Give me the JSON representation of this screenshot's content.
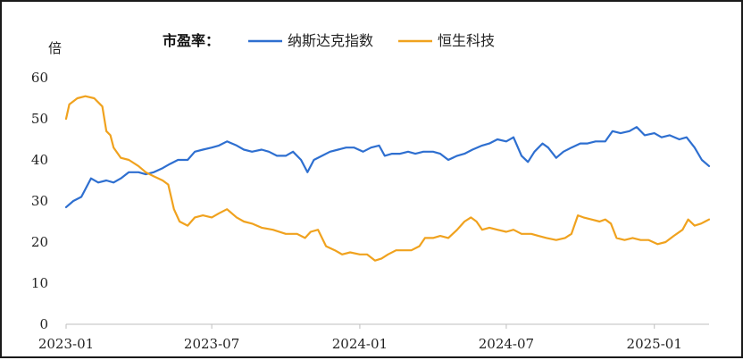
{
  "chart_data": {
    "type": "line",
    "title": "",
    "legend_title": "市盈率：",
    "unit_label": "倍",
    "xlabel": "",
    "ylabel": "",
    "ylim": [
      0,
      60
    ],
    "yticks": [
      0,
      10,
      20,
      30,
      40,
      50,
      60
    ],
    "xlim": [
      "2023-01",
      "2025-03-10"
    ],
    "xticks": [
      "2023-01",
      "2023-07",
      "2024-01",
      "2024-07",
      "2025-01"
    ],
    "legend_position": "top",
    "grid": false,
    "series": [
      {
        "name": "纳斯达克指数",
        "color": "#2E6FD0",
        "points": [
          [
            "2023-01-01",
            28.5
          ],
          [
            "2023-01-10",
            30
          ],
          [
            "2023-01-20",
            31
          ],
          [
            "2023-02-01",
            35.5
          ],
          [
            "2023-02-10",
            34.5
          ],
          [
            "2023-02-20",
            35
          ],
          [
            "2023-03-01",
            34.5
          ],
          [
            "2023-03-10",
            35.5
          ],
          [
            "2023-03-20",
            37
          ],
          [
            "2023-04-01",
            37
          ],
          [
            "2023-04-10",
            36.5
          ],
          [
            "2023-04-20",
            37
          ],
          [
            "2023-05-01",
            38
          ],
          [
            "2023-05-10",
            39
          ],
          [
            "2023-05-20",
            40
          ],
          [
            "2023-06-01",
            40
          ],
          [
            "2023-06-10",
            42
          ],
          [
            "2023-06-20",
            42.5
          ],
          [
            "2023-07-01",
            43
          ],
          [
            "2023-07-10",
            43.5
          ],
          [
            "2023-07-20",
            44.5
          ],
          [
            "2023-08-01",
            43.5
          ],
          [
            "2023-08-10",
            42.5
          ],
          [
            "2023-08-20",
            42
          ],
          [
            "2023-09-01",
            42.5
          ],
          [
            "2023-09-10",
            42
          ],
          [
            "2023-09-20",
            41
          ],
          [
            "2023-10-01",
            41
          ],
          [
            "2023-10-10",
            42
          ],
          [
            "2023-10-20",
            40
          ],
          [
            "2023-10-28",
            37
          ],
          [
            "2023-11-05",
            40
          ],
          [
            "2023-11-15",
            41
          ],
          [
            "2023-11-25",
            42
          ],
          [
            "2023-12-05",
            42.5
          ],
          [
            "2023-12-15",
            43
          ],
          [
            "2023-12-25",
            43
          ],
          [
            "2024-01-05",
            42
          ],
          [
            "2024-01-15",
            43
          ],
          [
            "2024-01-25",
            43.5
          ],
          [
            "2024-02-01",
            41
          ],
          [
            "2024-02-10",
            41.5
          ],
          [
            "2024-02-20",
            41.5
          ],
          [
            "2024-03-01",
            42
          ],
          [
            "2024-03-10",
            41.5
          ],
          [
            "2024-03-20",
            42
          ],
          [
            "2024-04-01",
            42
          ],
          [
            "2024-04-10",
            41.5
          ],
          [
            "2024-04-20",
            40
          ],
          [
            "2024-05-01",
            41
          ],
          [
            "2024-05-10",
            41.5
          ],
          [
            "2024-05-20",
            42.5
          ],
          [
            "2024-06-01",
            43.5
          ],
          [
            "2024-06-10",
            44
          ],
          [
            "2024-06-20",
            45
          ],
          [
            "2024-07-01",
            44.5
          ],
          [
            "2024-07-10",
            45.5
          ],
          [
            "2024-07-20",
            41
          ],
          [
            "2024-07-28",
            39.5
          ],
          [
            "2024-08-05",
            42
          ],
          [
            "2024-08-15",
            44
          ],
          [
            "2024-08-22",
            43
          ],
          [
            "2024-09-01",
            40.5
          ],
          [
            "2024-09-10",
            42
          ],
          [
            "2024-09-20",
            43
          ],
          [
            "2024-10-01",
            44
          ],
          [
            "2024-10-10",
            44
          ],
          [
            "2024-10-20",
            44.5
          ],
          [
            "2024-11-01",
            44.5
          ],
          [
            "2024-11-10",
            47
          ],
          [
            "2024-11-20",
            46.5
          ],
          [
            "2024-12-01",
            47
          ],
          [
            "2024-12-10",
            48
          ],
          [
            "2024-12-20",
            46
          ],
          [
            "2025-01-01",
            46.5
          ],
          [
            "2025-01-10",
            45.5
          ],
          [
            "2025-01-20",
            46
          ],
          [
            "2025-02-01",
            45
          ],
          [
            "2025-02-10",
            45.5
          ],
          [
            "2025-02-20",
            43
          ],
          [
            "2025-03-01",
            40
          ],
          [
            "2025-03-10",
            38.5
          ]
        ]
      },
      {
        "name": "恒生科技",
        "color": "#F0A21E",
        "points": [
          [
            "2023-01-01",
            50
          ],
          [
            "2023-01-05",
            53.5
          ],
          [
            "2023-01-15",
            55
          ],
          [
            "2023-01-25",
            55.5
          ],
          [
            "2023-02-05",
            55
          ],
          [
            "2023-02-15",
            53
          ],
          [
            "2023-02-20",
            47
          ],
          [
            "2023-02-25",
            46
          ],
          [
            "2023-03-01",
            43
          ],
          [
            "2023-03-10",
            40.5
          ],
          [
            "2023-03-20",
            40
          ],
          [
            "2023-04-01",
            38.5
          ],
          [
            "2023-04-10",
            37
          ],
          [
            "2023-04-20",
            36
          ],
          [
            "2023-05-01",
            35
          ],
          [
            "2023-05-08",
            34
          ],
          [
            "2023-05-15",
            28
          ],
          [
            "2023-05-22",
            25
          ],
          [
            "2023-06-01",
            24
          ],
          [
            "2023-06-10",
            26
          ],
          [
            "2023-06-20",
            26.5
          ],
          [
            "2023-07-01",
            26
          ],
          [
            "2023-07-10",
            27
          ],
          [
            "2023-07-20",
            28
          ],
          [
            "2023-08-01",
            26
          ],
          [
            "2023-08-10",
            25
          ],
          [
            "2023-08-20",
            24.5
          ],
          [
            "2023-09-01",
            23.5
          ],
          [
            "2023-09-15",
            23
          ],
          [
            "2023-10-01",
            22
          ],
          [
            "2023-10-15",
            22
          ],
          [
            "2023-10-25",
            21
          ],
          [
            "2023-11-01",
            22.5
          ],
          [
            "2023-11-10",
            23
          ],
          [
            "2023-11-20",
            19
          ],
          [
            "2023-12-01",
            18
          ],
          [
            "2023-12-10",
            17
          ],
          [
            "2023-12-20",
            17.5
          ],
          [
            "2024-01-01",
            17
          ],
          [
            "2024-01-10",
            17
          ],
          [
            "2024-01-20",
            15.5
          ],
          [
            "2024-01-28",
            16
          ],
          [
            "2024-02-05",
            17
          ],
          [
            "2024-02-15",
            18
          ],
          [
            "2024-02-25",
            18
          ],
          [
            "2024-03-05",
            18
          ],
          [
            "2024-03-15",
            19
          ],
          [
            "2024-03-22",
            21
          ],
          [
            "2024-04-01",
            21
          ],
          [
            "2024-04-10",
            21.5
          ],
          [
            "2024-04-20",
            21
          ],
          [
            "2024-05-01",
            23
          ],
          [
            "2024-05-10",
            25
          ],
          [
            "2024-05-18",
            26
          ],
          [
            "2024-05-25",
            25
          ],
          [
            "2024-06-01",
            23
          ],
          [
            "2024-06-10",
            23.5
          ],
          [
            "2024-06-20",
            23
          ],
          [
            "2024-07-01",
            22.5
          ],
          [
            "2024-07-10",
            23
          ],
          [
            "2024-07-20",
            22
          ],
          [
            "2024-08-01",
            22
          ],
          [
            "2024-08-10",
            21.5
          ],
          [
            "2024-08-20",
            21
          ],
          [
            "2024-09-01",
            20.5
          ],
          [
            "2024-09-12",
            21
          ],
          [
            "2024-09-20",
            22
          ],
          [
            "2024-09-28",
            26.5
          ],
          [
            "2024-10-05",
            26
          ],
          [
            "2024-10-15",
            25.5
          ],
          [
            "2024-10-25",
            25
          ],
          [
            "2024-11-01",
            25.5
          ],
          [
            "2024-11-08",
            24.5
          ],
          [
            "2024-11-15",
            21
          ],
          [
            "2024-11-25",
            20.5
          ],
          [
            "2024-12-05",
            21
          ],
          [
            "2024-12-15",
            20.5
          ],
          [
            "2024-12-25",
            20.5
          ],
          [
            "2025-01-05",
            19.5
          ],
          [
            "2025-01-15",
            20
          ],
          [
            "2025-01-25",
            21.5
          ],
          [
            "2025-02-05",
            23
          ],
          [
            "2025-02-12",
            25.5
          ],
          [
            "2025-02-20",
            24
          ],
          [
            "2025-02-28",
            24.5
          ],
          [
            "2025-03-05",
            25
          ],
          [
            "2025-03-10",
            25.5
          ]
        ]
      }
    ]
  }
}
